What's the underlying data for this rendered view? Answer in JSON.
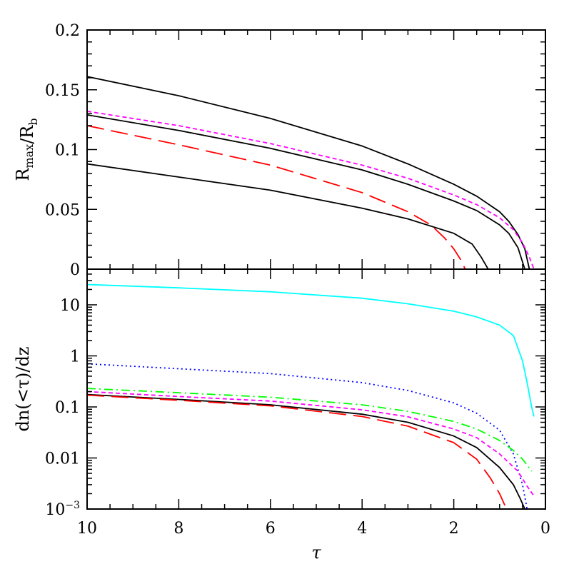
{
  "chart_data": [
    {
      "type": "line",
      "panel": "top",
      "xlabel": "τ",
      "ylabel": "R_max/R_b",
      "xlim": [
        10,
        0
      ],
      "ylim": [
        0,
        0.2
      ],
      "yscale": "linear",
      "xticks": [
        {
          "v": 10,
          "label": "10"
        },
        {
          "v": 8,
          "label": "8"
        },
        {
          "v": 6,
          "label": "6"
        },
        {
          "v": 4,
          "label": "4"
        },
        {
          "v": 2,
          "label": "2"
        },
        {
          "v": 0,
          "label": "0"
        }
      ],
      "yticks": [
        {
          "v": 0,
          "label": "0"
        },
        {
          "v": 0.05,
          "label": "0.05"
        },
        {
          "v": 0.1,
          "label": "0.1"
        },
        {
          "v": 0.15,
          "label": "0.15"
        },
        {
          "v": 0.2,
          "label": "0.2"
        }
      ],
      "series": [
        {
          "color": "#000000",
          "dash": "solid",
          "points": [
            [
              10,
              0.161
            ],
            [
              8,
              0.145
            ],
            [
              6,
              0.126
            ],
            [
              4,
              0.103
            ],
            [
              3,
              0.088
            ],
            [
              2,
              0.071
            ],
            [
              1.5,
              0.061
            ],
            [
              1,
              0.048
            ],
            [
              0.8,
              0.04
            ],
            [
              0.6,
              0.029
            ],
            [
              0.45,
              0.017
            ],
            [
              0.35,
              0.0
            ]
          ]
        },
        {
          "color": "#ff00ff",
          "dash": "short",
          "points": [
            [
              10,
              0.132
            ],
            [
              8,
              0.12
            ],
            [
              6,
              0.105
            ],
            [
              4,
              0.087
            ],
            [
              3,
              0.076
            ],
            [
              2,
              0.062
            ],
            [
              1.5,
              0.054
            ],
            [
              1,
              0.043
            ],
            [
              0.7,
              0.033
            ],
            [
              0.5,
              0.022
            ],
            [
              0.35,
              0.01
            ],
            [
              0.25,
              0.0
            ]
          ]
        },
        {
          "color": "#000000",
          "dash": "solid",
          "points": [
            [
              10,
              0.129
            ],
            [
              8,
              0.116
            ],
            [
              6,
              0.101
            ],
            [
              4,
              0.083
            ],
            [
              3,
              0.071
            ],
            [
              2,
              0.057
            ],
            [
              1.5,
              0.049
            ],
            [
              1,
              0.037
            ],
            [
              0.8,
              0.03
            ],
            [
              0.6,
              0.018
            ],
            [
              0.45,
              0.0
            ]
          ]
        },
        {
          "color": "#ff0000",
          "dash": "long",
          "points": [
            [
              10,
              0.12
            ],
            [
              8,
              0.104
            ],
            [
              6,
              0.087
            ],
            [
              4,
              0.064
            ],
            [
              3,
              0.048
            ],
            [
              2.5,
              0.037
            ],
            [
              2.2,
              0.026
            ],
            [
              2,
              0.017
            ],
            [
              1.85,
              0.008
            ],
            [
              1.75,
              0.0
            ]
          ]
        },
        {
          "color": "#000000",
          "dash": "solid",
          "points": [
            [
              10,
              0.088
            ],
            [
              8,
              0.077
            ],
            [
              6,
              0.066
            ],
            [
              4,
              0.051
            ],
            [
              3,
              0.042
            ],
            [
              2,
              0.03
            ],
            [
              1.6,
              0.021
            ],
            [
              1.4,
              0.01
            ],
            [
              1.25,
              0.0
            ]
          ]
        }
      ]
    },
    {
      "type": "line",
      "panel": "bottom",
      "xlabel": "τ",
      "ylabel": "dn(<τ)/dz",
      "xlim": [
        10,
        0
      ],
      "ylim": [
        0.001,
        50
      ],
      "yscale": "log",
      "xticks": [
        {
          "v": 10,
          "label": "10"
        },
        {
          "v": 8,
          "label": "8"
        },
        {
          "v": 6,
          "label": "6"
        },
        {
          "v": 4,
          "label": "4"
        },
        {
          "v": 2,
          "label": "2"
        },
        {
          "v": 0,
          "label": "0"
        }
      ],
      "yticks": [
        {
          "v": 0.001,
          "label": "10",
          "sup": "−3"
        },
        {
          "v": 0.01,
          "label": "0.01"
        },
        {
          "v": 0.1,
          "label": "0.1"
        },
        {
          "v": 1,
          "label": "1"
        },
        {
          "v": 10,
          "label": "10"
        }
      ],
      "series": [
        {
          "color": "#00ffff",
          "dash": "solid",
          "points": [
            [
              10,
              25
            ],
            [
              8,
              21.5
            ],
            [
              6,
              18
            ],
            [
              4,
              13.5
            ],
            [
              3,
              10.5
            ],
            [
              2,
              7.5
            ],
            [
              1.5,
              5.8
            ],
            [
              1,
              4
            ],
            [
              0.7,
              2.5
            ],
            [
              0.5,
              0.8
            ],
            [
              0.4,
              0.3
            ],
            [
              0.3,
              0.1
            ],
            [
              0.25,
              0.065
            ]
          ]
        },
        {
          "color": "#0000ff",
          "dash": "dot",
          "points": [
            [
              10,
              0.7
            ],
            [
              8,
              0.56
            ],
            [
              6,
              0.45
            ],
            [
              4,
              0.3
            ],
            [
              3,
              0.21
            ],
            [
              2,
              0.12
            ],
            [
              1.5,
              0.075
            ],
            [
              1,
              0.035
            ],
            [
              0.7,
              0.012
            ],
            [
              0.5,
              0.003
            ],
            [
              0.4,
              0.001
            ]
          ]
        },
        {
          "color": "#00ff00",
          "dash": "dashdot",
          "points": [
            [
              10,
              0.23
            ],
            [
              8,
              0.19
            ],
            [
              6,
              0.155
            ],
            [
              4,
              0.11
            ],
            [
              3,
              0.082
            ],
            [
              2,
              0.052
            ],
            [
              1.5,
              0.037
            ],
            [
              1,
              0.022
            ],
            [
              0.7,
              0.014
            ],
            [
              0.5,
              0.0095
            ],
            [
              0.3,
              0.0055
            ]
          ]
        },
        {
          "color": "#ff00ff",
          "dash": "short",
          "points": [
            [
              10,
              0.2
            ],
            [
              8,
              0.16
            ],
            [
              6,
              0.13
            ],
            [
              4,
              0.088
            ],
            [
              3,
              0.064
            ],
            [
              2,
              0.037
            ],
            [
              1.5,
              0.025
            ],
            [
              1,
              0.012
            ],
            [
              0.6,
              0.0055
            ],
            [
              0.4,
              0.0028
            ],
            [
              0.25,
              0.0018
            ]
          ]
        },
        {
          "color": "#000000",
          "dash": "solid",
          "points": [
            [
              10,
              0.175
            ],
            [
              8,
              0.14
            ],
            [
              6,
              0.11
            ],
            [
              4,
              0.072
            ],
            [
              3,
              0.05
            ],
            [
              2,
              0.027
            ],
            [
              1.5,
              0.016
            ],
            [
              1,
              0.0065
            ],
            [
              0.7,
              0.003
            ],
            [
              0.55,
              0.0016
            ],
            [
              0.45,
              0.001
            ]
          ]
        },
        {
          "color": "#ff0000",
          "dash": "long",
          "points": [
            [
              10,
              0.17
            ],
            [
              8,
              0.135
            ],
            [
              6,
              0.105
            ],
            [
              4,
              0.065
            ],
            [
              3,
              0.042
            ],
            [
              2,
              0.02
            ],
            [
              1.5,
              0.0095
            ],
            [
              1.2,
              0.004
            ],
            [
              1,
              0.002
            ],
            [
              0.85,
              0.001
            ]
          ]
        }
      ]
    }
  ]
}
